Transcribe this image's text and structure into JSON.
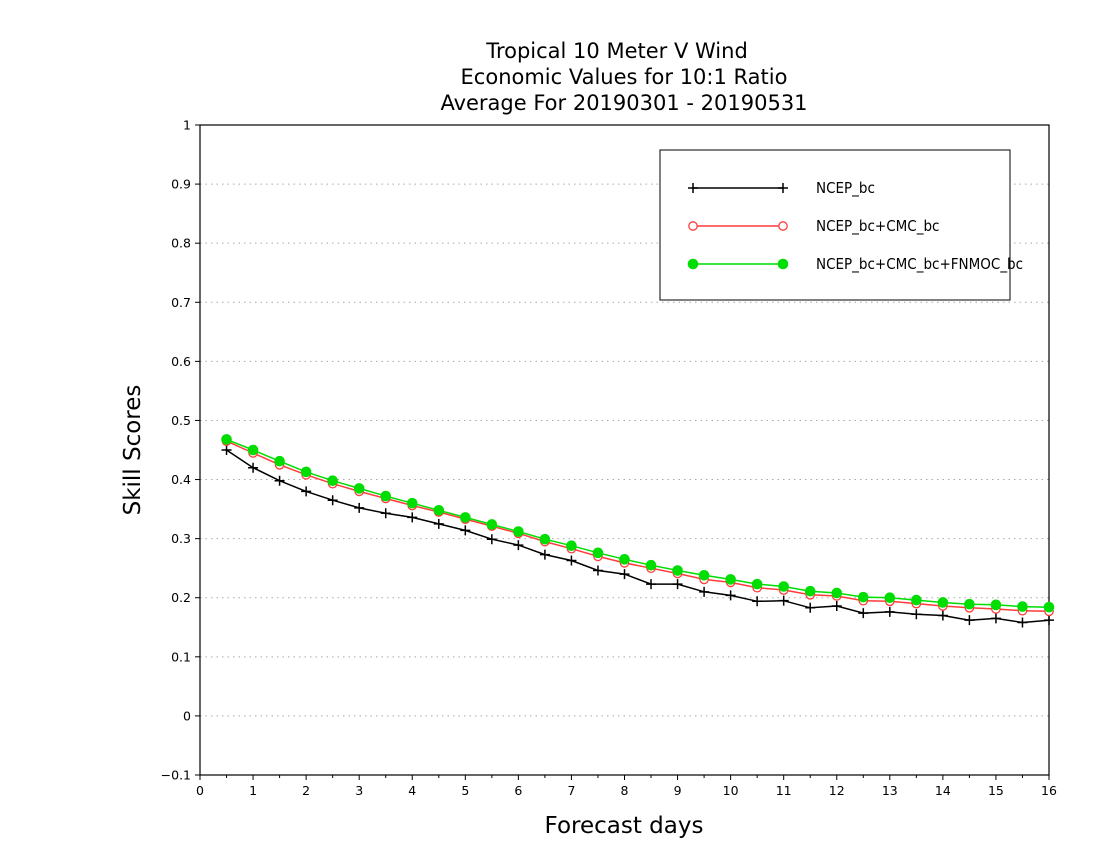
{
  "chart_data": {
    "type": "line",
    "title_lines": [
      "Tropical 10 Meter V Wind",
      "Economic Values for 10:1 Ratio",
      "Average For 20190301 - 20190531"
    ],
    "xlabel": "Forecast days",
    "ylabel": "Skill Scores",
    "xlim": [
      0,
      16
    ],
    "ylim": [
      -0.1,
      1
    ],
    "x_ticks": [
      "0",
      "1",
      "2",
      "3",
      "4",
      "5",
      "6",
      "7",
      "8",
      "9",
      "10",
      "11",
      "12",
      "13",
      "14",
      "15",
      "16"
    ],
    "y_ticks": [
      "-0.1",
      "0",
      "0.1",
      "0.2",
      "0.3",
      "0.4",
      "0.5",
      "0.6",
      "0.7",
      "0.8",
      "0.9",
      "1"
    ],
    "grid": "horizontal-dotted",
    "legend_position": "top-right",
    "x": [
      0.5,
      1,
      1.5,
      2,
      2.5,
      3,
      3.5,
      4,
      4.5,
      5,
      5.5,
      6,
      6.5,
      7,
      7.5,
      8,
      8.5,
      9,
      9.5,
      10,
      10.5,
      11,
      11.5,
      12,
      12.5,
      13,
      13.5,
      14,
      14.5,
      15,
      15.5,
      16
    ],
    "series": [
      {
        "name": "NCEP_bc",
        "color": "#000000",
        "marker": "plus",
        "values": [
          0.45,
          0.42,
          0.398,
          0.38,
          0.365,
          0.352,
          0.343,
          0.336,
          0.325,
          0.314,
          0.299,
          0.289,
          0.273,
          0.263,
          0.246,
          0.24,
          0.223,
          0.223,
          0.21,
          0.204,
          0.194,
          0.195,
          0.183,
          0.186,
          0.174,
          0.176,
          0.172,
          0.17,
          0.162,
          0.165,
          0.158,
          0.162
        ]
      },
      {
        "name": "NCEP_bc+CMC_bc",
        "color": "#ff3b3b",
        "marker": "open-circle",
        "values": [
          0.465,
          0.445,
          0.425,
          0.408,
          0.393,
          0.38,
          0.368,
          0.356,
          0.345,
          0.333,
          0.321,
          0.309,
          0.295,
          0.283,
          0.27,
          0.259,
          0.25,
          0.241,
          0.231,
          0.226,
          0.217,
          0.213,
          0.205,
          0.203,
          0.195,
          0.194,
          0.19,
          0.186,
          0.183,
          0.181,
          0.178,
          0.177
        ]
      },
      {
        "name": "NCEP_bc+CMC_bc+FNMOC_bc",
        "color": "#00dd00",
        "marker": "filled-circle",
        "values": [
          0.468,
          0.45,
          0.431,
          0.413,
          0.398,
          0.385,
          0.372,
          0.36,
          0.348,
          0.336,
          0.324,
          0.312,
          0.299,
          0.288,
          0.276,
          0.265,
          0.255,
          0.246,
          0.238,
          0.231,
          0.223,
          0.219,
          0.211,
          0.208,
          0.201,
          0.2,
          0.196,
          0.192,
          0.189,
          0.188,
          0.185,
          0.184
        ]
      }
    ]
  }
}
